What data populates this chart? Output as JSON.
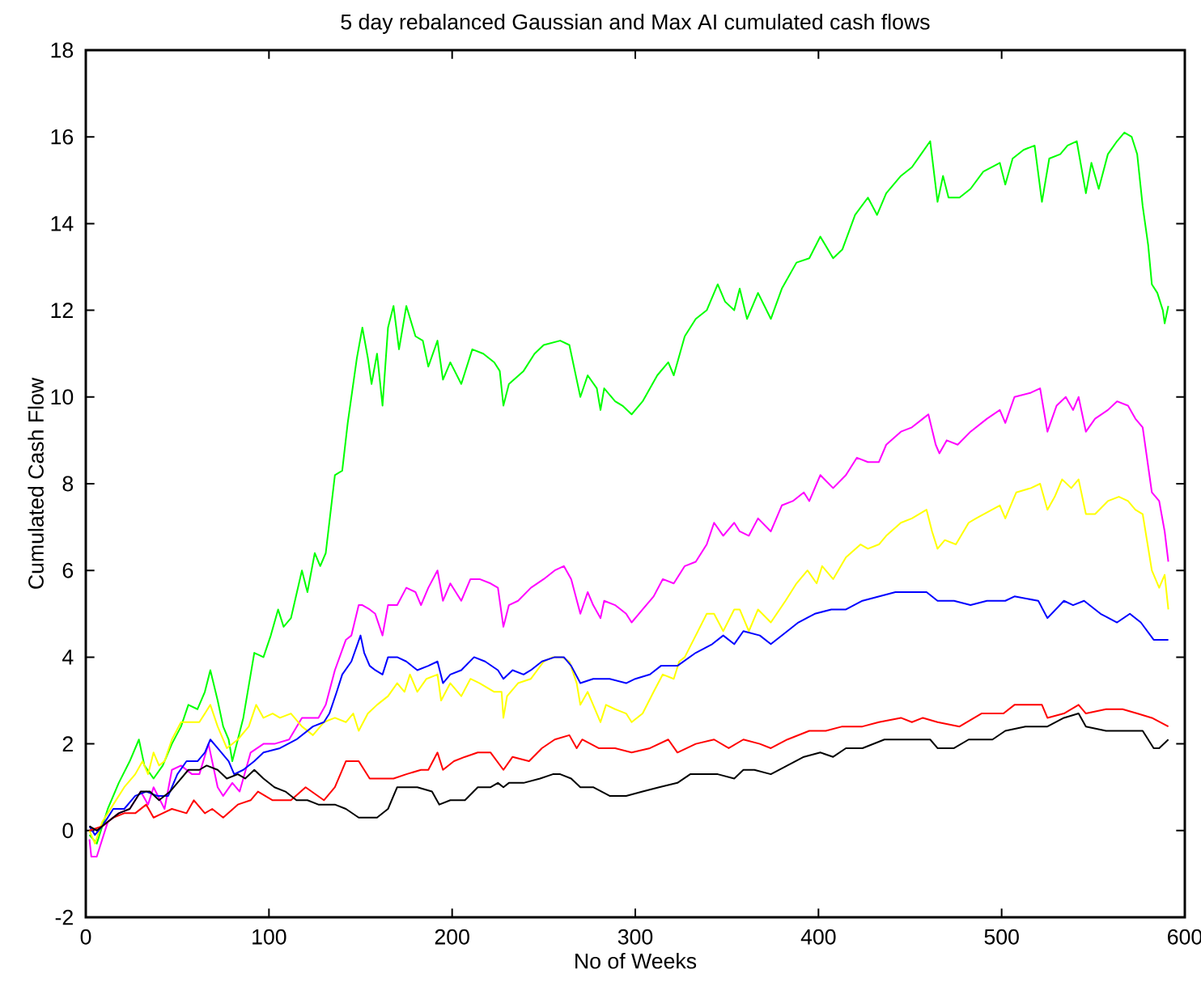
{
  "chart_data": {
    "type": "line",
    "title": "5 day rebalanced Gaussian and Max AI cumulated cash flows",
    "xlabel": "No of Weeks",
    "ylabel": "Cumulated Cash Flow",
    "xlim": [
      0,
      600
    ],
    "ylim": [
      -2,
      18
    ],
    "xticks": [
      0,
      100,
      200,
      300,
      400,
      500,
      600
    ],
    "yticks": [
      -2,
      0,
      2,
      4,
      6,
      8,
      10,
      12,
      14,
      16,
      18
    ],
    "series": [
      {
        "color": "#00ff00",
        "x": [
          2,
          6,
          12,
          18,
          24,
          29,
          32,
          37,
          42,
          47,
          52,
          56,
          61,
          65,
          68,
          72,
          75,
          78,
          80,
          83,
          86,
          90,
          92,
          97,
          101,
          105,
          108,
          112,
          118,
          121,
          125,
          128,
          131,
          136,
          140,
          143,
          148,
          151,
          154,
          156,
          159,
          162,
          165,
          168,
          171,
          175,
          180,
          184,
          187,
          192,
          195,
          199,
          205,
          211,
          217,
          223,
          226,
          228,
          231,
          239,
          245,
          250,
          259,
          264,
          268,
          270,
          274,
          279,
          281,
          283,
          289,
          293,
          298,
          304,
          308,
          312,
          318,
          321,
          327,
          333,
          339,
          345,
          349,
          354,
          357,
          361,
          367,
          374,
          380,
          388,
          395,
          401,
          408,
          413,
          420,
          427,
          432,
          437,
          445,
          451,
          456,
          461,
          465,
          468,
          471,
          477,
          483,
          490,
          499,
          502,
          506,
          512,
          518,
          522,
          526,
          532,
          536,
          541,
          546,
          549,
          553,
          558,
          563,
          567,
          571,
          574,
          577,
          580,
          582,
          585,
          588,
          589,
          591
        ],
        "values": [
          -0.1,
          -0.3,
          0.5,
          1.1,
          1.6,
          2.1,
          1.5,
          1.2,
          1.5,
          2.0,
          2.4,
          2.9,
          2.8,
          3.2,
          3.7,
          3.0,
          2.4,
          2.1,
          1.6,
          2.1,
          2.6,
          3.6,
          4.1,
          4.0,
          4.5,
          5.1,
          4.7,
          4.9,
          6.0,
          5.5,
          6.4,
          6.1,
          6.4,
          8.2,
          8.3,
          9.4,
          10.9,
          11.6,
          10.9,
          10.3,
          11.0,
          9.8,
          11.6,
          12.1,
          11.1,
          12.1,
          11.4,
          11.3,
          10.7,
          11.3,
          10.4,
          10.8,
          10.3,
          11.1,
          11.0,
          10.8,
          10.6,
          9.8,
          10.3,
          10.6,
          11.0,
          11.2,
          11.3,
          11.2,
          10.4,
          10.0,
          10.5,
          10.2,
          9.7,
          10.2,
          9.9,
          9.8,
          9.6,
          9.9,
          10.2,
          10.5,
          10.8,
          10.5,
          11.4,
          11.8,
          12.0,
          12.6,
          12.2,
          12.0,
          12.5,
          11.8,
          12.4,
          11.8,
          12.5,
          13.1,
          13.2,
          13.7,
          13.2,
          13.4,
          14.2,
          14.6,
          14.2,
          14.7,
          15.1,
          15.3,
          15.6,
          15.9,
          14.5,
          15.1,
          14.6,
          14.6,
          14.8,
          15.2,
          15.4,
          14.9,
          15.5,
          15.7,
          15.8,
          14.5,
          15.5,
          15.6,
          15.8,
          15.9,
          14.7,
          15.4,
          14.8,
          15.6,
          15.9,
          16.1,
          16.0,
          15.6,
          14.4,
          13.5,
          12.6,
          12.4,
          12.0,
          11.7,
          12.1
        ]
      },
      {
        "color": "#ff00ff",
        "x": [
          2,
          3,
          6,
          12,
          18,
          24,
          30,
          34,
          37,
          43,
          47,
          52,
          58,
          62,
          67,
          72,
          75,
          80,
          84,
          90,
          97,
          103,
          111,
          118,
          127,
          131,
          136,
          142,
          145,
          149,
          151,
          155,
          158,
          162,
          165,
          170,
          175,
          180,
          183,
          187,
          192,
          195,
          199,
          205,
          210,
          215,
          221,
          225,
          228,
          231,
          236,
          243,
          250,
          256,
          261,
          265,
          270,
          274,
          277,
          281,
          283,
          289,
          295,
          298,
          304,
          310,
          315,
          321,
          327,
          333,
          339,
          343,
          348,
          354,
          357,
          362,
          367,
          374,
          380,
          386,
          392,
          395,
          401,
          408,
          415,
          421,
          427,
          433,
          437,
          445,
          451,
          457,
          460,
          464,
          466,
          470,
          476,
          483,
          492,
          499,
          502,
          507,
          516,
          521,
          525,
          530,
          535,
          539,
          542,
          546,
          551,
          558,
          563,
          569,
          573,
          577,
          580,
          582,
          586,
          589,
          591
        ],
        "values": [
          -0.2,
          -0.6,
          -0.6,
          0.2,
          0.4,
          0.5,
          0.9,
          0.6,
          1.0,
          0.5,
          1.4,
          1.5,
          1.3,
          1.3,
          2.0,
          1.0,
          0.8,
          1.1,
          0.9,
          1.8,
          2.0,
          2.0,
          2.1,
          2.6,
          2.6,
          2.9,
          3.7,
          4.4,
          4.5,
          5.2,
          5.2,
          5.1,
          5.0,
          4.5,
          5.2,
          5.2,
          5.6,
          5.5,
          5.2,
          5.6,
          6.0,
          5.3,
          5.7,
          5.3,
          5.8,
          5.8,
          5.7,
          5.6,
          4.7,
          5.2,
          5.3,
          5.6,
          5.8,
          6.0,
          6.1,
          5.8,
          5.0,
          5.5,
          5.2,
          4.9,
          5.3,
          5.2,
          5.0,
          4.8,
          5.1,
          5.4,
          5.8,
          5.7,
          6.1,
          6.2,
          6.6,
          7.1,
          6.8,
          7.1,
          6.9,
          6.8,
          7.2,
          6.9,
          7.5,
          7.6,
          7.8,
          7.6,
          8.2,
          7.9,
          8.2,
          8.6,
          8.5,
          8.5,
          8.9,
          9.2,
          9.3,
          9.5,
          9.6,
          8.9,
          8.7,
          9.0,
          8.9,
          9.2,
          9.5,
          9.7,
          9.4,
          10.0,
          10.1,
          10.2,
          9.2,
          9.8,
          10.0,
          9.7,
          10.0,
          9.2,
          9.5,
          9.7,
          9.9,
          9.8,
          9.5,
          9.3,
          8.4,
          7.8,
          7.6,
          6.9,
          6.2
        ]
      },
      {
        "color": "#ffff00",
        "x": [
          2,
          5,
          9,
          15,
          21,
          27,
          31,
          34,
          37,
          40,
          43,
          47,
          52,
          58,
          62,
          68,
          72,
          77,
          83,
          89,
          93,
          97,
          102,
          106,
          112,
          118,
          124,
          130,
          136,
          142,
          146,
          149,
          154,
          159,
          165,
          170,
          174,
          177,
          181,
          186,
          192,
          194,
          199,
          205,
          210,
          215,
          223,
          227,
          228,
          230,
          236,
          243,
          250,
          255,
          260,
          264,
          268,
          270,
          274,
          281,
          284,
          289,
          295,
          298,
          304,
          310,
          315,
          321,
          324,
          327,
          333,
          339,
          343,
          348,
          354,
          357,
          362,
          367,
          374,
          382,
          388,
          394,
          399,
          402,
          408,
          415,
          423,
          427,
          433,
          437,
          445,
          451,
          459,
          462,
          465,
          469,
          475,
          482,
          486,
          499,
          502,
          508,
          516,
          521,
          525,
          529,
          533,
          538,
          542,
          546,
          551,
          558,
          564,
          569,
          573,
          577,
          582,
          586,
          589,
          591
        ],
        "values": [
          0.0,
          -0.3,
          0.2,
          0.6,
          1.0,
          1.3,
          1.6,
          1.3,
          1.8,
          1.5,
          1.6,
          2.1,
          2.5,
          2.5,
          2.5,
          2.9,
          2.4,
          1.9,
          2.1,
          2.4,
          2.9,
          2.6,
          2.7,
          2.6,
          2.7,
          2.4,
          2.2,
          2.5,
          2.6,
          2.5,
          2.7,
          2.3,
          2.7,
          2.9,
          3.1,
          3.4,
          3.2,
          3.6,
          3.2,
          3.5,
          3.6,
          3.0,
          3.4,
          3.1,
          3.5,
          3.4,
          3.2,
          3.2,
          2.6,
          3.1,
          3.4,
          3.5,
          3.9,
          4.0,
          4.0,
          3.9,
          3.4,
          2.9,
          3.2,
          2.5,
          2.9,
          2.8,
          2.7,
          2.5,
          2.7,
          3.2,
          3.6,
          3.5,
          3.9,
          4.0,
          4.5,
          5.0,
          5.0,
          4.6,
          5.1,
          5.1,
          4.6,
          5.1,
          4.8,
          5.3,
          5.7,
          6.0,
          5.7,
          6.1,
          5.8,
          6.3,
          6.6,
          6.5,
          6.6,
          6.8,
          7.1,
          7.2,
          7.4,
          6.9,
          6.5,
          6.7,
          6.6,
          7.1,
          7.2,
          7.5,
          7.2,
          7.8,
          7.9,
          8.0,
          7.4,
          7.7,
          8.1,
          7.9,
          8.1,
          7.3,
          7.3,
          7.6,
          7.7,
          7.6,
          7.4,
          7.3,
          6.0,
          5.6,
          5.9,
          5.1
        ]
      },
      {
        "color": "#0000ff",
        "x": [
          2,
          5,
          9,
          15,
          21,
          27,
          33,
          39,
          45,
          50,
          55,
          61,
          65,
          68,
          72,
          78,
          81,
          86,
          92,
          97,
          106,
          115,
          124,
          130,
          133,
          137,
          140,
          145,
          150,
          152,
          155,
          158,
          162,
          165,
          170,
          175,
          181,
          187,
          192,
          195,
          199,
          205,
          212,
          218,
          225,
          228,
          233,
          239,
          243,
          249,
          256,
          261,
          265,
          270,
          277,
          286,
          295,
          300,
          308,
          314,
          323,
          333,
          342,
          348,
          354,
          359,
          368,
          374,
          383,
          389,
          398,
          407,
          415,
          424,
          433,
          442,
          451,
          459,
          465,
          474,
          483,
          492,
          502,
          507,
          520,
          525,
          534,
          539,
          545,
          554,
          563,
          570,
          576,
          583,
          591
        ],
        "values": [
          0.1,
          -0.1,
          0.1,
          0.5,
          0.5,
          0.8,
          0.9,
          0.8,
          0.8,
          1.3,
          1.6,
          1.6,
          1.8,
          2.1,
          1.9,
          1.6,
          1.3,
          1.4,
          1.6,
          1.8,
          1.9,
          2.1,
          2.4,
          2.5,
          2.7,
          3.2,
          3.6,
          3.9,
          4.5,
          4.1,
          3.8,
          3.7,
          3.6,
          4.0,
          4.0,
          3.9,
          3.7,
          3.8,
          3.9,
          3.4,
          3.6,
          3.7,
          4.0,
          3.9,
          3.7,
          3.5,
          3.7,
          3.6,
          3.7,
          3.9,
          4.0,
          4.0,
          3.8,
          3.4,
          3.5,
          3.5,
          3.4,
          3.5,
          3.6,
          3.8,
          3.8,
          4.1,
          4.3,
          4.5,
          4.3,
          4.6,
          4.5,
          4.3,
          4.6,
          4.8,
          5.0,
          5.1,
          5.1,
          5.3,
          5.4,
          5.5,
          5.5,
          5.5,
          5.3,
          5.3,
          5.2,
          5.3,
          5.3,
          5.4,
          5.3,
          4.9,
          5.3,
          5.2,
          5.3,
          5.0,
          4.8,
          5.0,
          4.8,
          4.4,
          4.4
        ]
      },
      {
        "color": "#ff0000",
        "x": [
          2,
          9,
          15,
          21,
          27,
          33,
          37,
          42,
          47,
          55,
          59,
          65,
          69,
          75,
          83,
          90,
          94,
          102,
          112,
          120,
          130,
          136,
          142,
          149,
          155,
          162,
          168,
          175,
          183,
          187,
          192,
          195,
          201,
          207,
          214,
          221,
          228,
          233,
          242,
          249,
          256,
          264,
          268,
          271,
          280,
          289,
          298,
          308,
          318,
          323,
          333,
          343,
          351,
          359,
          368,
          374,
          383,
          395,
          404,
          413,
          424,
          433,
          445,
          451,
          457,
          465,
          477,
          489,
          501,
          507,
          514,
          522,
          525,
          534,
          542,
          546,
          557,
          566,
          574,
          582,
          591
        ],
        "values": [
          0.0,
          0.1,
          0.3,
          0.4,
          0.4,
          0.6,
          0.3,
          0.4,
          0.5,
          0.4,
          0.7,
          0.4,
          0.5,
          0.3,
          0.6,
          0.7,
          0.9,
          0.7,
          0.7,
          1.0,
          0.7,
          1.0,
          1.6,
          1.6,
          1.2,
          1.2,
          1.2,
          1.3,
          1.4,
          1.4,
          1.8,
          1.4,
          1.6,
          1.7,
          1.8,
          1.8,
          1.4,
          1.7,
          1.6,
          1.9,
          2.1,
          2.2,
          1.9,
          2.1,
          1.9,
          1.9,
          1.8,
          1.9,
          2.1,
          1.8,
          2.0,
          2.1,
          1.9,
          2.1,
          2.0,
          1.9,
          2.1,
          2.3,
          2.3,
          2.4,
          2.4,
          2.5,
          2.6,
          2.5,
          2.6,
          2.5,
          2.4,
          2.7,
          2.7,
          2.9,
          2.9,
          2.9,
          2.6,
          2.7,
          2.9,
          2.7,
          2.8,
          2.8,
          2.7,
          2.6,
          2.4
        ]
      },
      {
        "color": "#000000",
        "x": [
          2,
          6,
          12,
          18,
          24,
          30,
          35,
          40,
          46,
          50,
          56,
          62,
          66,
          72,
          77,
          83,
          87,
          92,
          97,
          103,
          109,
          115,
          121,
          127,
          136,
          142,
          149,
          153,
          159,
          165,
          170,
          175,
          181,
          189,
          193,
          199,
          207,
          214,
          221,
          225,
          228,
          231,
          239,
          248,
          255,
          259,
          265,
          270,
          277,
          286,
          295,
          304,
          313,
          323,
          330,
          339,
          345,
          354,
          359,
          365,
          374,
          383,
          392,
          401,
          408,
          415,
          424,
          436,
          445,
          454,
          461,
          465,
          474,
          482,
          486,
          495,
          502,
          513,
          520,
          525,
          534,
          542,
          546,
          557,
          566,
          577,
          583,
          586,
          591
        ],
        "values": [
          0.1,
          0.0,
          0.2,
          0.4,
          0.5,
          0.9,
          0.9,
          0.7,
          0.9,
          1.1,
          1.4,
          1.4,
          1.5,
          1.4,
          1.2,
          1.3,
          1.2,
          1.4,
          1.2,
          1.0,
          0.9,
          0.7,
          0.7,
          0.6,
          0.6,
          0.5,
          0.3,
          0.3,
          0.3,
          0.5,
          1.0,
          1.0,
          1.0,
          0.9,
          0.6,
          0.7,
          0.7,
          1.0,
          1.0,
          1.1,
          1.0,
          1.1,
          1.1,
          1.2,
          1.3,
          1.3,
          1.2,
          1.0,
          1.0,
          0.8,
          0.8,
          0.9,
          1.0,
          1.1,
          1.3,
          1.3,
          1.3,
          1.2,
          1.4,
          1.4,
          1.3,
          1.5,
          1.7,
          1.8,
          1.7,
          1.9,
          1.9,
          2.1,
          2.1,
          2.1,
          2.1,
          1.9,
          1.9,
          2.1,
          2.1,
          2.1,
          2.3,
          2.4,
          2.4,
          2.4,
          2.6,
          2.7,
          2.4,
          2.3,
          2.3,
          2.3,
          1.9,
          1.9,
          2.1
        ]
      }
    ]
  }
}
